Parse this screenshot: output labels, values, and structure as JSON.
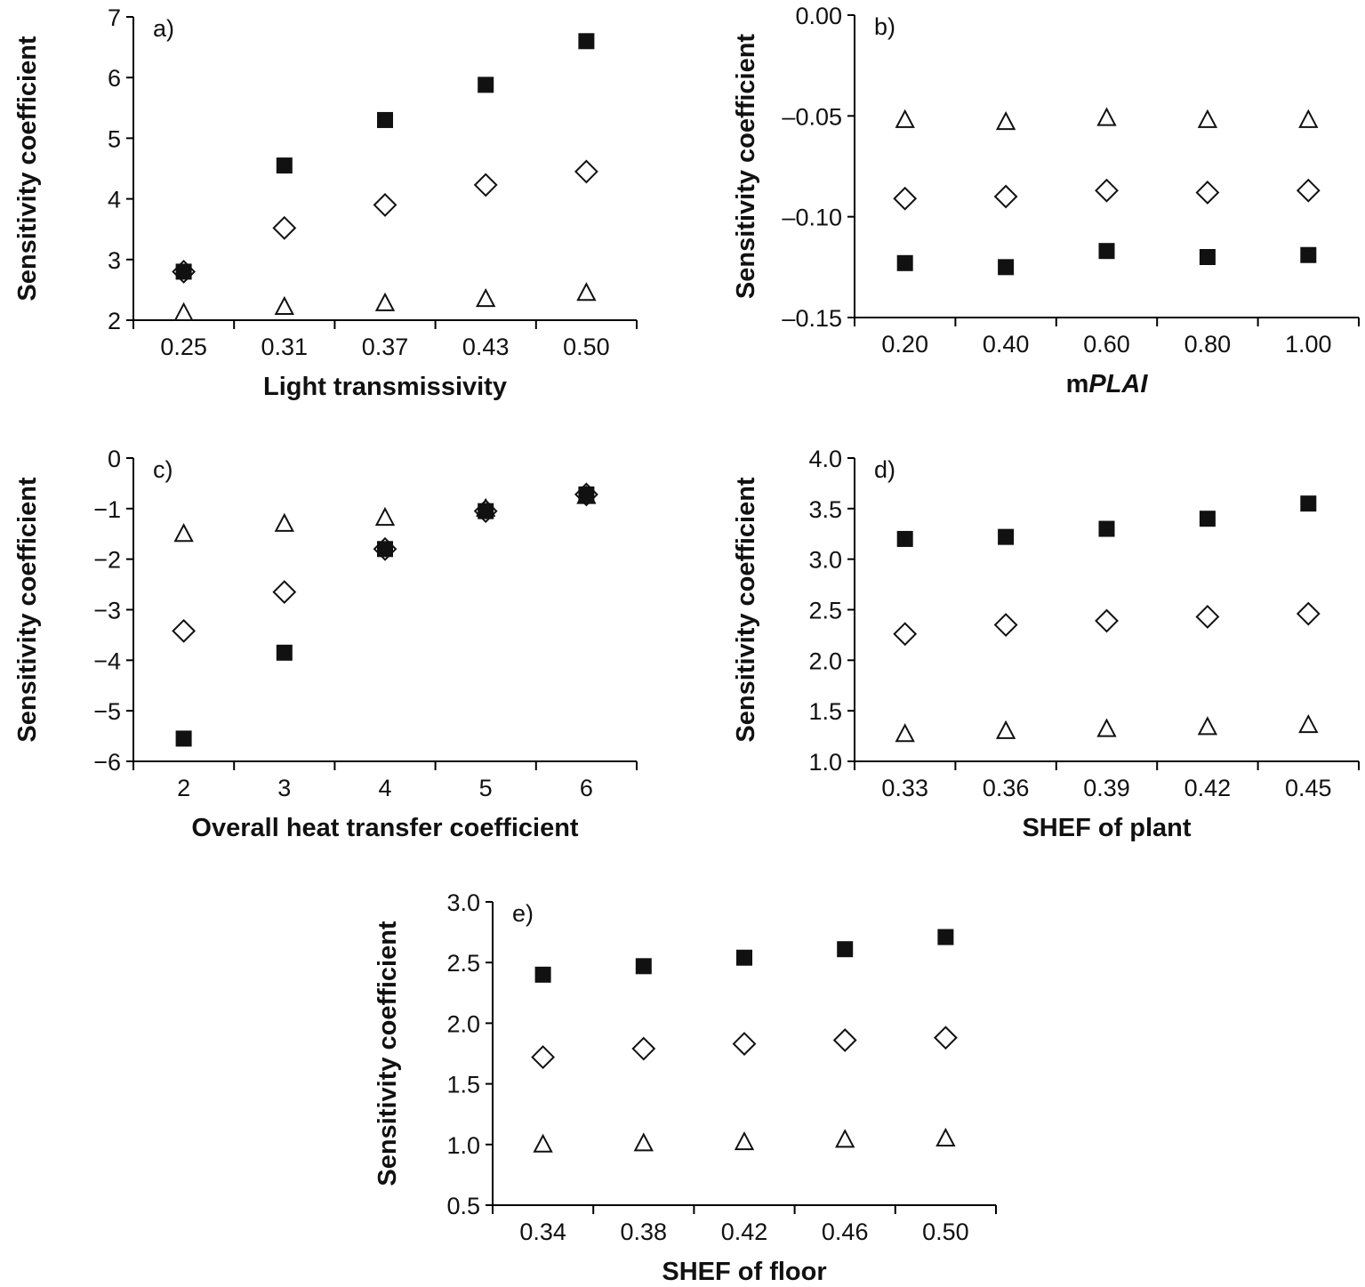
{
  "chart_data": [
    {
      "type": "scatter",
      "panel_label": "a)",
      "xlabel": "Light transmissivity",
      "xlabel_italic": "",
      "ylabel": "Sensitivity coefficient",
      "categories": [
        "0.25",
        "0.31",
        "0.37",
        "0.43",
        "0.50"
      ],
      "ylim": [
        2,
        7
      ],
      "yticks": [
        "2",
        "3",
        "4",
        "5",
        "6",
        "7"
      ],
      "series": [
        {
          "marker": "square",
          "values": [
            2.8,
            4.55,
            5.3,
            5.88,
            6.6
          ]
        },
        {
          "marker": "diamond",
          "values": [
            2.8,
            3.52,
            3.9,
            4.23,
            4.45
          ]
        },
        {
          "marker": "triangle",
          "values": [
            2.12,
            2.22,
            2.28,
            2.35,
            2.45
          ]
        }
      ]
    },
    {
      "type": "scatter",
      "panel_label": "b)",
      "xlabel": "m",
      "xlabel_italic": "PLAI",
      "ylabel": "Sensitivity coefficient",
      "categories": [
        "0.20",
        "0.40",
        "0.60",
        "0.80",
        "1.00"
      ],
      "ylim": [
        -0.15,
        0
      ],
      "yticks": [
        "–0.15",
        "–0.10",
        "–0.05",
        "0.00"
      ],
      "series": [
        {
          "marker": "square",
          "values": [
            -0.123,
            -0.125,
            -0.117,
            -0.12,
            -0.119
          ]
        },
        {
          "marker": "diamond",
          "values": [
            -0.091,
            -0.09,
            -0.087,
            -0.088,
            -0.087
          ]
        },
        {
          "marker": "triangle",
          "values": [
            -0.052,
            -0.053,
            -0.051,
            -0.052,
            -0.052
          ]
        }
      ]
    },
    {
      "type": "scatter",
      "panel_label": "c)",
      "xlabel": "Overall heat transfer coefficient",
      "xlabel_italic": "",
      "ylabel": "Sensitivity coefficient",
      "categories": [
        "2",
        "3",
        "4",
        "5",
        "6"
      ],
      "ylim": [
        -6,
        0
      ],
      "yticks": [
        "−6",
        "−5",
        "−4",
        "−3",
        "−2",
        "−1",
        "0"
      ],
      "series": [
        {
          "marker": "square",
          "values": [
            -5.55,
            -3.85,
            -1.8,
            -1.05,
            -0.72
          ]
        },
        {
          "marker": "diamond",
          "values": [
            -3.42,
            -2.65,
            -1.8,
            -1.05,
            -0.72
          ]
        },
        {
          "marker": "triangle",
          "values": [
            -1.5,
            -1.3,
            -1.18,
            -1.0,
            -0.75
          ]
        }
      ]
    },
    {
      "type": "scatter",
      "panel_label": "d)",
      "xlabel": "SHEF of plant",
      "xlabel_italic": "",
      "ylabel": "Sensitivity coefficient",
      "categories": [
        "0.33",
        "0.36",
        "0.39",
        "0.42",
        "0.45"
      ],
      "ylim": [
        1.0,
        4.0
      ],
      "yticks": [
        "1.0",
        "1.5",
        "2.0",
        "2.5",
        "3.0",
        "3.5",
        "4.0"
      ],
      "series": [
        {
          "marker": "square",
          "values": [
            3.2,
            3.22,
            3.3,
            3.4,
            3.55
          ]
        },
        {
          "marker": "diamond",
          "values": [
            2.26,
            2.35,
            2.39,
            2.43,
            2.46
          ]
        },
        {
          "marker": "triangle",
          "values": [
            1.27,
            1.3,
            1.32,
            1.34,
            1.36
          ]
        }
      ]
    },
    {
      "type": "scatter",
      "panel_label": "e)",
      "xlabel": "SHEF of floor",
      "xlabel_italic": "",
      "ylabel": "Sensitivity coefficient",
      "categories": [
        "0.34",
        "0.38",
        "0.42",
        "0.46",
        "0.50"
      ],
      "ylim": [
        0.5,
        3.0
      ],
      "yticks": [
        "0.5",
        "1.0",
        "1.5",
        "2.0",
        "2.5",
        "3.0"
      ],
      "series": [
        {
          "marker": "square",
          "values": [
            2.4,
            2.47,
            2.54,
            2.61,
            2.71
          ]
        },
        {
          "marker": "diamond",
          "values": [
            1.72,
            1.79,
            1.83,
            1.86,
            1.88
          ]
        },
        {
          "marker": "triangle",
          "values": [
            1.0,
            1.01,
            1.02,
            1.04,
            1.05
          ]
        }
      ]
    }
  ]
}
